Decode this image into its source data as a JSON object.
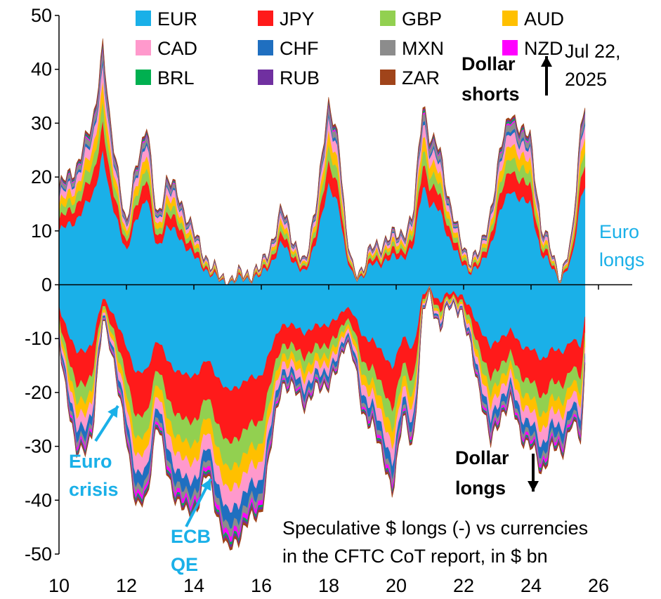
{
  "chart_data": {
    "type": "area",
    "subtype": "stacked-positive-negative",
    "title": "",
    "xlabel": "",
    "ylabel": "",
    "xlim": [
      10,
      27
    ],
    "ylim": [
      -50,
      50
    ],
    "x_ticks": [
      10,
      12,
      14,
      16,
      18,
      20,
      22,
      24,
      26
    ],
    "y_ticks": [
      50,
      40,
      30,
      20,
      10,
      0,
      -10,
      -20,
      -30,
      -40,
      -50
    ],
    "legend_position": "top",
    "series": [
      {
        "name": "EUR",
        "color": "#1ab0e8"
      },
      {
        "name": "JPY",
        "color": "#ff1a1a"
      },
      {
        "name": "GBP",
        "color": "#92d050"
      },
      {
        "name": "AUD",
        "color": "#ffc000"
      },
      {
        "name": "CAD",
        "color": "#ff99cc"
      },
      {
        "name": "CHF",
        "color": "#1f6fc0"
      },
      {
        "name": "MXN",
        "color": "#8c8c8c"
      },
      {
        "name": "NZD",
        "color": "#ff00ff"
      },
      {
        "name": "BRL",
        "color": "#00b050"
      },
      {
        "name": "RUB",
        "color": "#7030a0"
      },
      {
        "name": "ZAR",
        "color": "#a0441a"
      }
    ],
    "envelope": {
      "x": [
        10.0,
        10.5,
        11.0,
        11.3,
        11.5,
        11.8,
        12.0,
        12.3,
        12.6,
        12.9,
        13.2,
        13.5,
        13.8,
        14.1,
        14.4,
        14.8,
        15.0,
        15.5,
        16.0,
        16.3,
        16.6,
        17.0,
        17.3,
        17.6,
        18.0,
        18.3,
        18.5,
        18.7,
        19.0,
        19.3,
        19.6,
        19.9,
        20.2,
        20.5,
        20.8,
        21.0,
        21.3,
        21.6,
        21.9,
        22.2,
        22.5,
        22.8,
        23.1,
        23.4,
        23.7,
        24.0,
        24.3,
        24.6,
        24.9,
        25.2,
        25.5,
        25.6
      ],
      "upper": [
        18,
        22,
        30,
        45,
        30,
        20,
        10,
        23,
        30,
        12,
        20,
        17,
        13,
        8,
        5,
        1,
        1,
        2,
        3,
        8,
        14,
        8,
        3,
        15,
        33,
        28,
        10,
        3,
        3,
        7,
        8,
        9,
        10,
        12,
        35,
        27,
        25,
        15,
        8,
        5,
        6,
        14,
        25,
        33,
        28,
        28,
        10,
        7,
        1,
        8,
        32,
        33
      ],
      "lower": [
        -10,
        -32,
        -28,
        -6,
        -10,
        -22,
        -28,
        -42,
        -40,
        -25,
        -35,
        -40,
        -43,
        -41,
        -35,
        -45,
        -50,
        -45,
        -42,
        -30,
        -18,
        -20,
        -22,
        -20,
        -18,
        -16,
        -10,
        -12,
        -25,
        -25,
        -33,
        -38,
        -25,
        -30,
        -5,
        -2,
        -8,
        -4,
        -4,
        -12,
        -20,
        -30,
        -24,
        -22,
        -28,
        -30,
        -35,
        -30,
        -32,
        -25,
        -30,
        -15
      ]
    },
    "stack_shares_positive": [
      0.55,
      0.12,
      0.08,
      0.08,
      0.07,
      0.02,
      0.04,
      0.01,
      0.01,
      0.01,
      0.01
    ],
    "stack_shares_negative": [
      0.4,
      0.2,
      0.1,
      0.08,
      0.08,
      0.06,
      0.03,
      0.02,
      0.01,
      0.01,
      0.01
    ],
    "annotations": [
      {
        "text": [
          "Dollar",
          "shorts"
        ],
        "color": "#000000",
        "bold": true
      },
      {
        "text": [
          "Jul 22,",
          "2025"
        ],
        "color": "#000000",
        "bold": false
      },
      {
        "text": [
          "Euro",
          "longs"
        ],
        "color": "#1ab0e8",
        "bold": false
      },
      {
        "text": [
          "Dollar",
          "longs"
        ],
        "color": "#000000",
        "bold": true
      },
      {
        "text": [
          "Euro",
          "crisis"
        ],
        "color": "#1ab0e8",
        "bold": true
      },
      {
        "text": [
          "ECB",
          "QE"
        ],
        "color": "#1ab0e8",
        "bold": true
      },
      {
        "text": [
          "Speculative $ longs (-) vs currencies",
          "in the CFTC CoT report, in $ bn"
        ],
        "color": "#000000",
        "bold": false
      }
    ]
  }
}
